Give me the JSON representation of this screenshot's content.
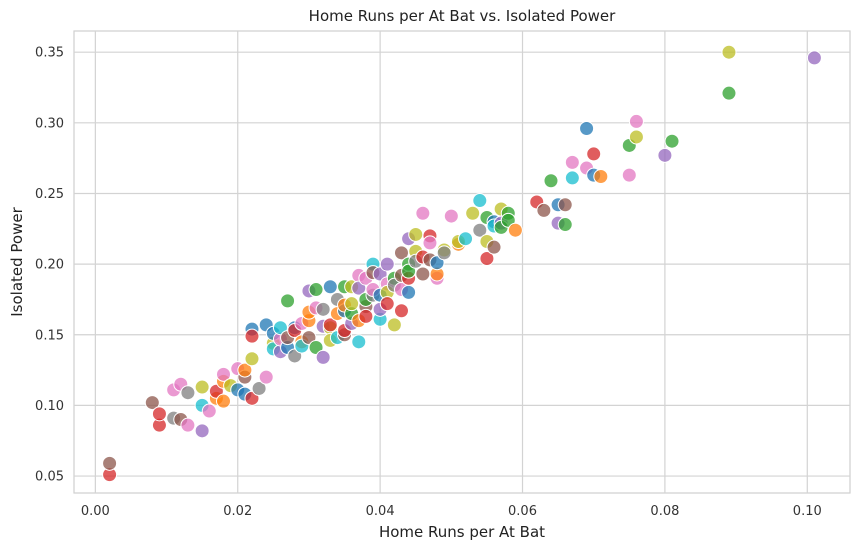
{
  "chart_data": {
    "type": "scatter",
    "title": "Home Runs per At Bat vs. Isolated Power",
    "xlabel": "Home Runs per At Bat",
    "ylabel": "Isolated Power",
    "xlim": [
      -0.003,
      0.106
    ],
    "ylim": [
      0.038,
      0.365
    ],
    "xticks": [
      0.0,
      0.02,
      0.04,
      0.06,
      0.08,
      0.1
    ],
    "xtick_labels": [
      "0.00",
      "0.02",
      "0.04",
      "0.06",
      "0.08",
      "0.10"
    ],
    "yticks": [
      0.05,
      0.1,
      0.15,
      0.2,
      0.25,
      0.3,
      0.35
    ],
    "ytick_labels": [
      "0.05",
      "0.10",
      "0.15",
      "0.20",
      "0.25",
      "0.30",
      "0.35"
    ],
    "grid": true,
    "palette": [
      "#1f77b4",
      "#ff7f0e",
      "#2ca02c",
      "#d62728",
      "#9467bd",
      "#8c564b",
      "#e377c2",
      "#7f7f7f",
      "#bcbd22",
      "#17becf"
    ],
    "points": [
      [
        0.002,
        0.051,
        3
      ],
      [
        0.002,
        0.059,
        5
      ],
      [
        0.008,
        0.102,
        5
      ],
      [
        0.009,
        0.086,
        3
      ],
      [
        0.009,
        0.094,
        3
      ],
      [
        0.011,
        0.111,
        6
      ],
      [
        0.011,
        0.091,
        7
      ],
      [
        0.012,
        0.09,
        5
      ],
      [
        0.012,
        0.115,
        6
      ],
      [
        0.013,
        0.109,
        7
      ],
      [
        0.013,
        0.086,
        6
      ],
      [
        0.015,
        0.113,
        8
      ],
      [
        0.015,
        0.1,
        9
      ],
      [
        0.015,
        0.082,
        4
      ],
      [
        0.016,
        0.096,
        6
      ],
      [
        0.017,
        0.105,
        1
      ],
      [
        0.017,
        0.11,
        3
      ],
      [
        0.018,
        0.117,
        1
      ],
      [
        0.018,
        0.103,
        1
      ],
      [
        0.018,
        0.122,
        6
      ],
      [
        0.019,
        0.114,
        8
      ],
      [
        0.02,
        0.111,
        0
      ],
      [
        0.02,
        0.126,
        6
      ],
      [
        0.021,
        0.12,
        5
      ],
      [
        0.021,
        0.125,
        1
      ],
      [
        0.021,
        0.108,
        0
      ],
      [
        0.022,
        0.133,
        8
      ],
      [
        0.022,
        0.154,
        0
      ],
      [
        0.022,
        0.149,
        3
      ],
      [
        0.022,
        0.105,
        3
      ],
      [
        0.023,
        0.112,
        7
      ],
      [
        0.024,
        0.12,
        6
      ],
      [
        0.024,
        0.157,
        0
      ],
      [
        0.025,
        0.144,
        8
      ],
      [
        0.025,
        0.151,
        0
      ],
      [
        0.025,
        0.14,
        9
      ],
      [
        0.026,
        0.138,
        4
      ],
      [
        0.026,
        0.147,
        6
      ],
      [
        0.026,
        0.155,
        9
      ],
      [
        0.027,
        0.141,
        0
      ],
      [
        0.027,
        0.174,
        2
      ],
      [
        0.027,
        0.148,
        5
      ],
      [
        0.028,
        0.155,
        0
      ],
      [
        0.028,
        0.153,
        3
      ],
      [
        0.028,
        0.135,
        7
      ],
      [
        0.029,
        0.145,
        1
      ],
      [
        0.029,
        0.142,
        9
      ],
      [
        0.029,
        0.158,
        6
      ],
      [
        0.03,
        0.16,
        1
      ],
      [
        0.03,
        0.166,
        1
      ],
      [
        0.03,
        0.181,
        4
      ],
      [
        0.03,
        0.148,
        5
      ],
      [
        0.031,
        0.141,
        2
      ],
      [
        0.031,
        0.169,
        6
      ],
      [
        0.031,
        0.182,
        2
      ],
      [
        0.032,
        0.156,
        4
      ],
      [
        0.032,
        0.134,
        4
      ],
      [
        0.032,
        0.168,
        7
      ],
      [
        0.033,
        0.155,
        8
      ],
      [
        0.033,
        0.157,
        3
      ],
      [
        0.033,
        0.146,
        8
      ],
      [
        0.033,
        0.184,
        0
      ],
      [
        0.034,
        0.175,
        7
      ],
      [
        0.034,
        0.165,
        1
      ],
      [
        0.034,
        0.148,
        9
      ],
      [
        0.035,
        0.15,
        5
      ],
      [
        0.035,
        0.153,
        3
      ],
      [
        0.035,
        0.167,
        0
      ],
      [
        0.035,
        0.171,
        1
      ],
      [
        0.035,
        0.184,
        2
      ],
      [
        0.036,
        0.158,
        4
      ],
      [
        0.036,
        0.165,
        2
      ],
      [
        0.036,
        0.172,
        8
      ],
      [
        0.036,
        0.184,
        8
      ],
      [
        0.037,
        0.145,
        9
      ],
      [
        0.037,
        0.16,
        1
      ],
      [
        0.037,
        0.192,
        6
      ],
      [
        0.037,
        0.183,
        4
      ],
      [
        0.038,
        0.17,
        5
      ],
      [
        0.038,
        0.175,
        2
      ],
      [
        0.038,
        0.19,
        6
      ],
      [
        0.038,
        0.163,
        3
      ],
      [
        0.039,
        0.178,
        7
      ],
      [
        0.039,
        0.2,
        9
      ],
      [
        0.039,
        0.194,
        5
      ],
      [
        0.039,
        0.182,
        6
      ],
      [
        0.04,
        0.161,
        9
      ],
      [
        0.04,
        0.178,
        0
      ],
      [
        0.04,
        0.193,
        4
      ],
      [
        0.04,
        0.168,
        4
      ],
      [
        0.041,
        0.186,
        6
      ],
      [
        0.041,
        0.2,
        4
      ],
      [
        0.041,
        0.18,
        8
      ],
      [
        0.041,
        0.172,
        3
      ],
      [
        0.042,
        0.157,
        8
      ],
      [
        0.042,
        0.19,
        2
      ],
      [
        0.042,
        0.185,
        7
      ],
      [
        0.043,
        0.182,
        6
      ],
      [
        0.043,
        0.192,
        5
      ],
      [
        0.043,
        0.208,
        5
      ],
      [
        0.043,
        0.167,
        3
      ],
      [
        0.044,
        0.18,
        0
      ],
      [
        0.044,
        0.19,
        3
      ],
      [
        0.044,
        0.218,
        4
      ],
      [
        0.044,
        0.2,
        2
      ],
      [
        0.044,
        0.195,
        2
      ],
      [
        0.045,
        0.221,
        8
      ],
      [
        0.045,
        0.209,
        8
      ],
      [
        0.045,
        0.202,
        7
      ],
      [
        0.046,
        0.236,
        6
      ],
      [
        0.046,
        0.205,
        3
      ],
      [
        0.046,
        0.193,
        5
      ],
      [
        0.047,
        0.22,
        3
      ],
      [
        0.047,
        0.203,
        5
      ],
      [
        0.047,
        0.215,
        6
      ],
      [
        0.048,
        0.19,
        6
      ],
      [
        0.048,
        0.193,
        1
      ],
      [
        0.048,
        0.201,
        0
      ],
      [
        0.049,
        0.21,
        8
      ],
      [
        0.049,
        0.208,
        7
      ],
      [
        0.05,
        0.234,
        6
      ],
      [
        0.051,
        0.214,
        1
      ],
      [
        0.051,
        0.216,
        8
      ],
      [
        0.052,
        0.218,
        9
      ],
      [
        0.053,
        0.236,
        8
      ],
      [
        0.054,
        0.245,
        9
      ],
      [
        0.054,
        0.224,
        7
      ],
      [
        0.055,
        0.216,
        8
      ],
      [
        0.055,
        0.204,
        3
      ],
      [
        0.055,
        0.233,
        2
      ],
      [
        0.056,
        0.212,
        5
      ],
      [
        0.056,
        0.23,
        0
      ],
      [
        0.056,
        0.227,
        9
      ],
      [
        0.057,
        0.229,
        4
      ],
      [
        0.057,
        0.239,
        8
      ],
      [
        0.057,
        0.226,
        2
      ],
      [
        0.058,
        0.236,
        2
      ],
      [
        0.058,
        0.231,
        2
      ],
      [
        0.059,
        0.224,
        1
      ],
      [
        0.062,
        0.244,
        3
      ],
      [
        0.063,
        0.238,
        5
      ],
      [
        0.064,
        0.259,
        2
      ],
      [
        0.065,
        0.242,
        0
      ],
      [
        0.065,
        0.229,
        4
      ],
      [
        0.066,
        0.228,
        2
      ],
      [
        0.066,
        0.242,
        5
      ],
      [
        0.067,
        0.272,
        6
      ],
      [
        0.067,
        0.261,
        9
      ],
      [
        0.069,
        0.296,
        0
      ],
      [
        0.069,
        0.268,
        6
      ],
      [
        0.07,
        0.278,
        3
      ],
      [
        0.07,
        0.263,
        0
      ],
      [
        0.071,
        0.262,
        1
      ],
      [
        0.075,
        0.263,
        6
      ],
      [
        0.075,
        0.284,
        2
      ],
      [
        0.076,
        0.29,
        8
      ],
      [
        0.076,
        0.301,
        6
      ],
      [
        0.08,
        0.277,
        4
      ],
      [
        0.081,
        0.287,
        2
      ],
      [
        0.089,
        0.35,
        8
      ],
      [
        0.089,
        0.321,
        2
      ],
      [
        0.101,
        0.346,
        4
      ]
    ]
  }
}
